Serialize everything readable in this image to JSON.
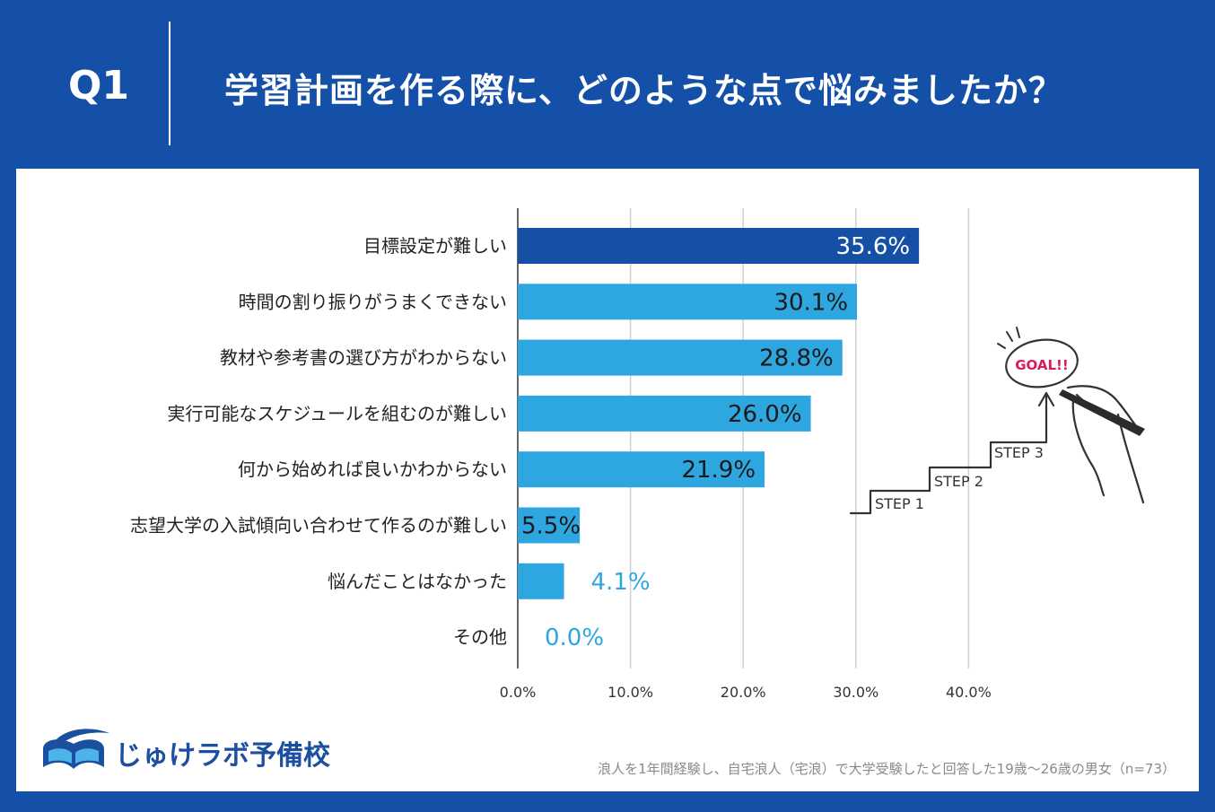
{
  "header": {
    "question_label": "Q1",
    "question_text": "学習計画を作る際に、どのような点で悩みましたか？"
  },
  "chart_data": {
    "type": "bar",
    "orientation": "horizontal",
    "categories": [
      "目標設定が難しい",
      "時間の割り振りがうまくできない",
      "教材や参考書の選び方がわからない",
      "実行可能なスケジュールを組むのが難しい",
      "何から始めれば良いかわからない",
      "志望大学の入試傾向い合わせて作るのが難しい",
      "悩んだことはなかった",
      "その他"
    ],
    "values": [
      35.6,
      30.1,
      28.8,
      26.0,
      21.9,
      5.5,
      4.1,
      0.0
    ],
    "value_labels": [
      "35.6%",
      "30.1%",
      "28.8%",
      "26.0%",
      "21.9%",
      "5.5%",
      "4.1%",
      "0.0%"
    ],
    "xlim": [
      0,
      40
    ],
    "ticks": [
      0,
      10,
      20,
      30,
      40
    ],
    "tick_labels": [
      "0.0%",
      "10.0%",
      "20.0%",
      "30.0%",
      "40.0%"
    ],
    "grid": true,
    "highlight_color": "#1650a6",
    "bar_color": "#2ea6e0",
    "title": "",
    "xlabel": "",
    "ylabel": ""
  },
  "illustration": {
    "goal_text": "GOAL!!",
    "steps": [
      "STEP 1",
      "STEP 2",
      "STEP 3"
    ]
  },
  "logo": {
    "text": "じゅけラボ予備校"
  },
  "footnote": "浪人を1年間経験し、自宅浪人（宅浪）で大学受験したと回答した19歳～26歳の男女（n=73）"
}
